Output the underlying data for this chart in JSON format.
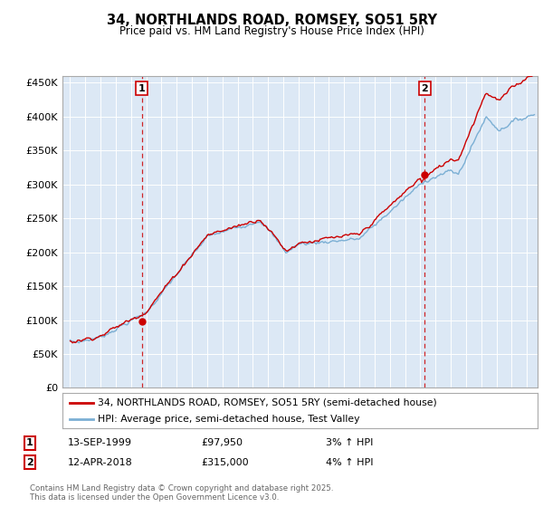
{
  "title": "34, NORTHLANDS ROAD, ROMSEY, SO51 5RY",
  "subtitle": "Price paid vs. HM Land Registry's House Price Index (HPI)",
  "ylim": [
    0,
    460000
  ],
  "yticks": [
    0,
    50000,
    100000,
    150000,
    200000,
    250000,
    300000,
    350000,
    400000,
    450000
  ],
  "ytick_labels": [
    "£0",
    "£50K",
    "£100K",
    "£150K",
    "£200K",
    "£250K",
    "£300K",
    "£350K",
    "£400K",
    "£450K"
  ],
  "background_color": "#ffffff",
  "chart_bg_color": "#dce8f5",
  "grid_color": "#ffffff",
  "line_color_price": "#cc0000",
  "line_color_hpi": "#7bafd4",
  "sale1_date": "13-SEP-1999",
  "sale1_price": 97950,
  "sale1_pct": "3%",
  "sale1_x": 1999.71,
  "sale2_date": "12-APR-2018",
  "sale2_price": 315000,
  "sale2_pct": "4%",
  "sale2_x": 2018.29,
  "legend_price_label": "34, NORTHLANDS ROAD, ROMSEY, SO51 5RY (semi-detached house)",
  "legend_hpi_label": "HPI: Average price, semi-detached house, Test Valley",
  "footer": "Contains HM Land Registry data © Crown copyright and database right 2025.\nThis data is licensed under the Open Government Licence v3.0.",
  "xlim": [
    1994.5,
    2025.7
  ],
  "xticks": [
    1995,
    1996,
    1997,
    1998,
    1999,
    2000,
    2001,
    2002,
    2003,
    2004,
    2005,
    2006,
    2007,
    2008,
    2009,
    2010,
    2011,
    2012,
    2013,
    2014,
    2015,
    2016,
    2017,
    2018,
    2019,
    2020,
    2021,
    2022,
    2023,
    2024,
    2025
  ]
}
